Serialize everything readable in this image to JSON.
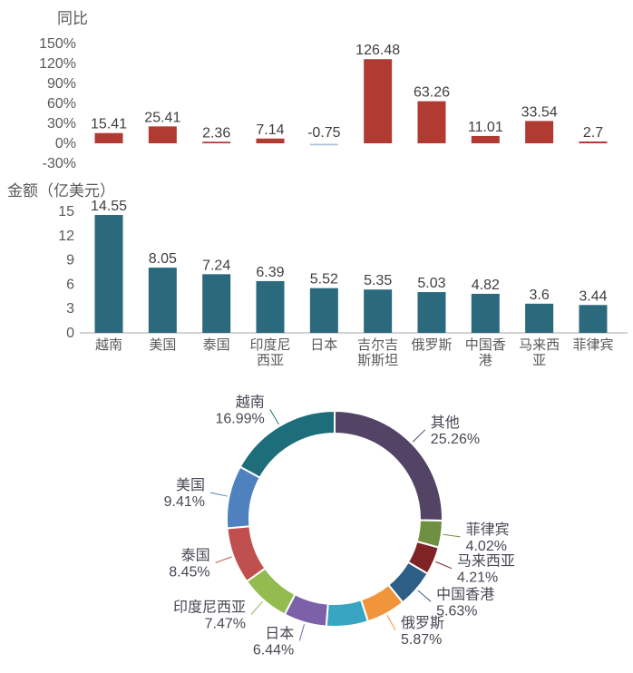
{
  "page": {
    "background": "#ffffff"
  },
  "chart_data": [
    {
      "type": "bar",
      "title": "同比",
      "unit": "%",
      "categories": [
        "越南",
        "美国",
        "泰国",
        "印度尼西亚",
        "日本",
        "吉尔吉斯斯坦",
        "俄罗斯",
        "中国香港",
        "马来西亚",
        "菲律宾"
      ],
      "values": [
        15.41,
        25.41,
        2.36,
        7.14,
        -0.75,
        126.48,
        63.26,
        11.01,
        33.54,
        2.7
      ],
      "data_labels": [
        "15.41",
        "25.41",
        "2.36",
        "7.14",
        "-0.75",
        "126.48",
        "63.26",
        "11.01",
        "33.54",
        "2.7"
      ],
      "y_ticks": [
        "150%",
        "120%",
        "90%",
        "60%",
        "30%",
        "0%",
        "-30%"
      ],
      "ylim": [
        -30,
        150
      ],
      "grid": false,
      "legend": "none",
      "bar_color": "#b13a33",
      "negative_bar_color": "#aec6de"
    },
    {
      "type": "bar",
      "title": "金额（亿美元）",
      "categories": [
        "越南",
        "美国",
        "泰国",
        "印度尼西亚",
        "日本",
        "吉尔吉斯斯坦",
        "俄罗斯",
        "中国香港",
        "马来西亚",
        "菲律宾"
      ],
      "tick_labels": [
        "越南",
        "美国",
        "泰国",
        "印度尼\n西亚",
        "日本",
        "吉尔吉\n斯斯坦",
        "俄罗斯",
        "中国香\n港",
        "马来西\n亚",
        "菲律宾"
      ],
      "values": [
        14.55,
        8.05,
        7.24,
        6.39,
        5.52,
        5.35,
        5.03,
        4.82,
        3.6,
        3.44
      ],
      "data_labels": [
        "14.55",
        "8.05",
        "7.24",
        "6.39",
        "5.52",
        "5.35",
        "5.03",
        "4.82",
        "3.6",
        "3.44"
      ],
      "y_ticks": [
        "15",
        "12",
        "9",
        "6",
        "3",
        "0"
      ],
      "ylim": [
        0,
        15
      ],
      "grid": false,
      "legend": "none",
      "axis_line_color": "#a6a6a6",
      "bar_color": "#2b6a7d"
    },
    {
      "type": "pie",
      "subtype": "donut",
      "start_angle": "top",
      "direction": "clockwise",
      "slices": [
        {
          "label": "其他",
          "pct_label": "25.26%",
          "value": 25.26,
          "color": "#534466"
        },
        {
          "label": "菲律宾",
          "pct_label": "4.02%",
          "value": 4.02,
          "color": "#6f9040"
        },
        {
          "label": "马来西亚",
          "pct_label": "4.21%",
          "value": 4.21,
          "color": "#7e2326"
        },
        {
          "label": "中国香港",
          "pct_label": "5.63%",
          "value": 5.63,
          "color": "#2d5e86"
        },
        {
          "label": "俄罗斯",
          "pct_label": "5.87%",
          "value": 5.87,
          "color": "#f0953c"
        },
        {
          "label": "",
          "pct_label": "",
          "value": 6.25,
          "color": "#38a5c3"
        },
        {
          "label": "日本",
          "pct_label": "6.44%",
          "value": 6.44,
          "color": "#7c61a9"
        },
        {
          "label": "印度尼西亚",
          "pct_label": "7.47%",
          "value": 7.47,
          "color": "#93bb4f"
        },
        {
          "label": "泰国",
          "pct_label": "8.45%",
          "value": 8.45,
          "color": "#c0504d"
        },
        {
          "label": "美国",
          "pct_label": "9.41%",
          "value": 9.41,
          "color": "#4e81bd"
        },
        {
          "label": "越南",
          "pct_label": "16.99%",
          "value": 16.99,
          "color": "#1e6d7b"
        }
      ]
    }
  ]
}
